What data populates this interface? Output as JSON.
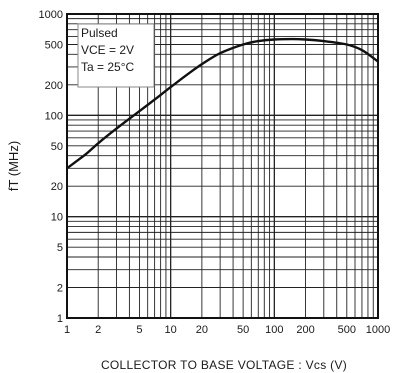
{
  "chart_data": {
    "type": "line",
    "title": "",
    "xlabel": "COLLECTOR TO BASE VOLTAGE : Vcs (V)",
    "ylabel": "fT (MHz)",
    "x_scale": "log",
    "y_scale": "log",
    "xlim": [
      1,
      1000
    ],
    "ylim": [
      1,
      1000
    ],
    "grid": true,
    "x_ticks": [
      {
        "value": 1,
        "label": "1"
      },
      {
        "value": 2,
        "label": "2"
      },
      {
        "value": 5,
        "label": "5"
      },
      {
        "value": 10,
        "label": "10"
      },
      {
        "value": 20,
        "label": "20"
      },
      {
        "value": 50,
        "label": "50"
      },
      {
        "value": 100,
        "label": "100"
      },
      {
        "value": 200,
        "label": "200"
      },
      {
        "value": 500,
        "label": "500"
      },
      {
        "value": 1000,
        "label": "1000"
      }
    ],
    "y_ticks": [
      {
        "value": 1,
        "label": "1"
      },
      {
        "value": 2,
        "label": "2"
      },
      {
        "value": 5,
        "label": "5"
      },
      {
        "value": 10,
        "label": "10"
      },
      {
        "value": 20,
        "label": "20"
      },
      {
        "value": 50,
        "label": "50"
      },
      {
        "value": 100,
        "label": "100"
      },
      {
        "value": 200,
        "label": "200"
      },
      {
        "value": 500,
        "label": "500"
      },
      {
        "value": 1000,
        "label": "1000"
      }
    ],
    "annotation": [
      "Pulsed",
      "VCE = 2V",
      "Ta = 25°C"
    ],
    "series": [
      {
        "x": [
          1,
          1.5,
          2,
          3,
          5,
          7,
          10,
          15,
          20,
          30,
          50,
          70,
          100,
          150,
          200,
          300,
          500,
          700,
          1000
        ],
        "y": [
          30,
          41,
          53,
          74,
          110,
          143,
          190,
          260,
          320,
          410,
          500,
          540,
          560,
          565,
          560,
          540,
          500,
          440,
          340
        ]
      }
    ]
  }
}
